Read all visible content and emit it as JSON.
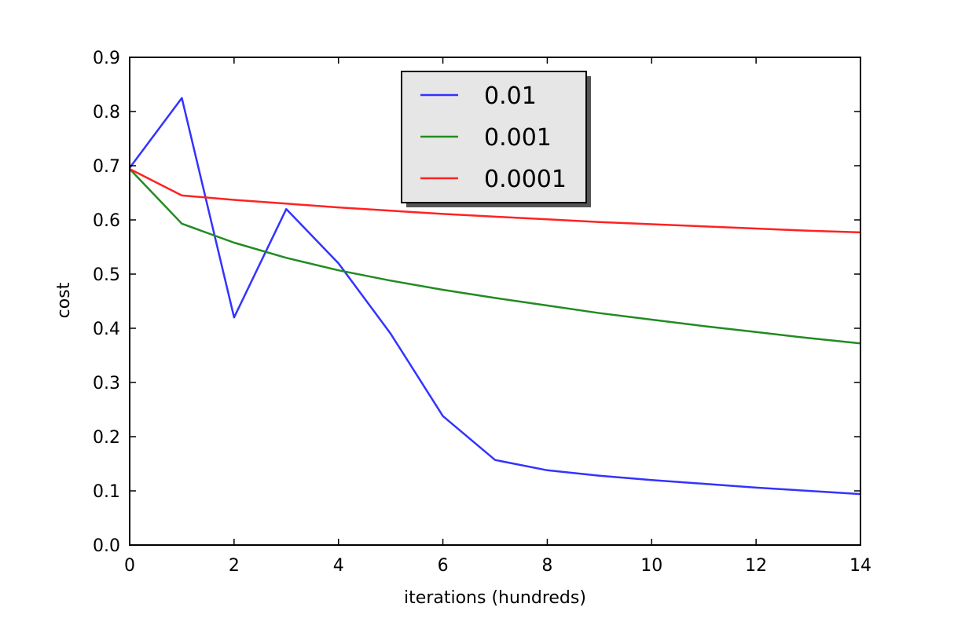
{
  "chart_data": {
    "type": "line",
    "title": "",
    "xlabel": "iterations (hundreds)",
    "ylabel": "cost",
    "xlim": [
      0,
      14
    ],
    "ylim": [
      0,
      0.9
    ],
    "xticks": [
      "0",
      "2",
      "4",
      "6",
      "8",
      "10",
      "12",
      "14"
    ],
    "yticks": [
      "0.0",
      "0.1",
      "0.2",
      "0.3",
      "0.4",
      "0.5",
      "0.6",
      "0.7",
      "0.8",
      "0.9"
    ],
    "grid": false,
    "legend_position": "top-center",
    "x": [
      0,
      1,
      2,
      3,
      4,
      5,
      6,
      7,
      8,
      9,
      10,
      11,
      12,
      13,
      14
    ],
    "series": [
      {
        "name": "0.01",
        "color": "#3333ff",
        "values": [
          0.696,
          0.825,
          0.42,
          0.62,
          0.52,
          0.39,
          0.238,
          0.157,
          0.138,
          0.128,
          0.12,
          0.113,
          0.106,
          0.1,
          0.094
        ]
      },
      {
        "name": "0.001",
        "color": "#228b22",
        "values": [
          0.694,
          0.593,
          0.558,
          0.53,
          0.507,
          0.488,
          0.471,
          0.456,
          0.442,
          0.428,
          0.416,
          0.404,
          0.393,
          0.382,
          0.372
        ]
      },
      {
        "name": "0.0001",
        "color": "#ff2222",
        "values": [
          0.694,
          0.645,
          0.637,
          0.63,
          0.623,
          0.617,
          0.611,
          0.606,
          0.601,
          0.596,
          0.592,
          0.588,
          0.584,
          0.58,
          0.577
        ]
      }
    ]
  }
}
